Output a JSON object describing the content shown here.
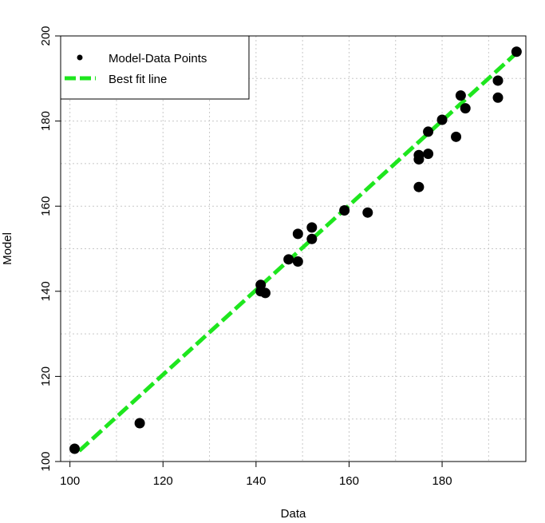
{
  "chart_data": {
    "type": "scatter",
    "xlabel": "Data",
    "ylabel": "Model",
    "xlim": [
      98,
      198
    ],
    "ylim": [
      100,
      200
    ],
    "x_ticks": [
      100,
      120,
      140,
      160,
      180
    ],
    "y_ticks": [
      100,
      120,
      140,
      160,
      180,
      200
    ],
    "grid": true,
    "legend_position": "top-left",
    "series": [
      {
        "name": "Model-Data Points",
        "kind": "points",
        "color": "#000000",
        "points": [
          [
            101,
            103
          ],
          [
            115,
            109
          ],
          [
            141,
            141.5
          ],
          [
            141,
            140
          ],
          [
            142,
            139.6
          ],
          [
            147,
            147.5
          ],
          [
            149,
            147
          ],
          [
            149,
            153.5
          ],
          [
            152,
            152.3
          ],
          [
            152,
            155
          ],
          [
            159,
            159
          ],
          [
            164,
            158.5
          ],
          [
            175,
            164.5
          ],
          [
            175,
            171
          ],
          [
            175,
            172
          ],
          [
            177,
            172.3
          ],
          [
            177,
            177.5
          ],
          [
            180,
            180.3
          ],
          [
            183,
            176.3
          ],
          [
            184,
            186
          ],
          [
            185,
            183
          ],
          [
            192,
            185.5
          ],
          [
            192,
            189.5
          ],
          [
            196,
            196.3
          ]
        ]
      },
      {
        "name": "Best fit line",
        "kind": "line",
        "color": "#1ee61e",
        "points": [
          [
            102,
            102.5
          ],
          [
            196,
            196
          ]
        ]
      }
    ]
  }
}
